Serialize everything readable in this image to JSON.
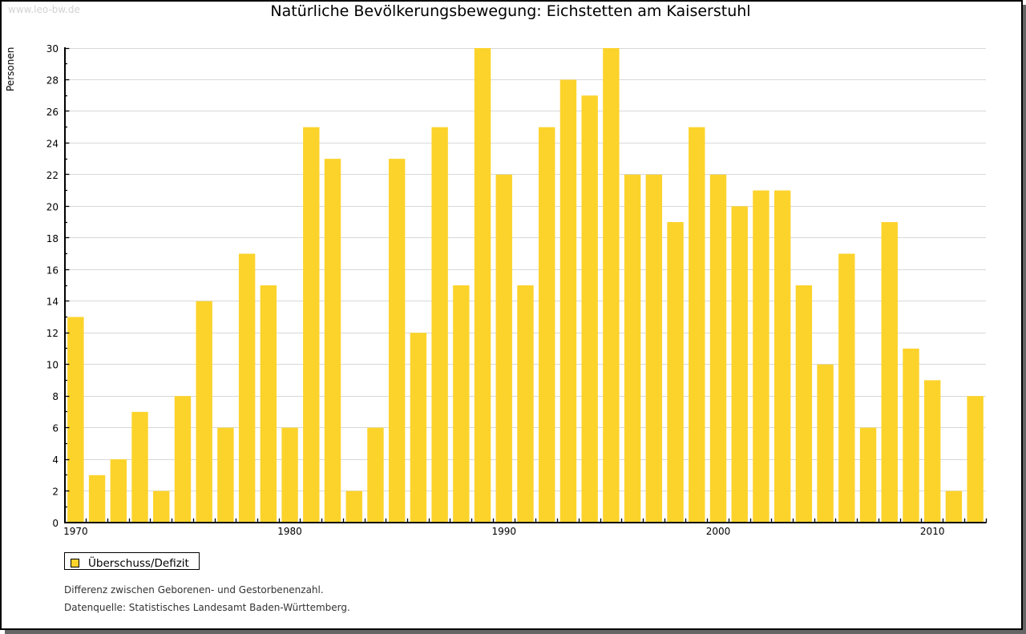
{
  "watermark": "www.leo-bw.de",
  "chart_data": {
    "type": "bar",
    "title": "Natürliche Bevölkerungsbewegung: Eichstetten am Kaiserstuhl",
    "ylabel": "Personen",
    "xlabel": "",
    "years": [
      1970,
      1971,
      1972,
      1973,
      1974,
      1975,
      1976,
      1977,
      1978,
      1979,
      1980,
      1981,
      1982,
      1983,
      1984,
      1985,
      1986,
      1987,
      1988,
      1989,
      1990,
      1991,
      1992,
      1993,
      1994,
      1995,
      1996,
      1997,
      1998,
      1999,
      2000,
      2001,
      2002,
      2003,
      2004,
      2005,
      2006,
      2007,
      2008,
      2009,
      2010,
      2011,
      2012
    ],
    "values": [
      13,
      3,
      4,
      7,
      2,
      8,
      14,
      6,
      17,
      15,
      6,
      25,
      23,
      2,
      6,
      23,
      12,
      25,
      15,
      30,
      22,
      15,
      25,
      28,
      27,
      30,
      22,
      22,
      19,
      25,
      22,
      20,
      21,
      21,
      15,
      10,
      17,
      6,
      19,
      11,
      9,
      2,
      8
    ],
    "x_tick_labels": [
      "1970",
      "1980",
      "1990",
      "2000",
      "2010"
    ],
    "ylim": [
      0,
      30
    ],
    "y_tick_step": 2,
    "y_minor_tick_step": 1,
    "grid": "horizontal-major",
    "legend_position": "bottom-left",
    "series_name": "Überschuss/Defizit",
    "bar_color": "#fcd32b",
    "grid_color": "#d8d8d8",
    "axis_color": "#000000"
  },
  "legend": {
    "label": "Überschuss/Defizit"
  },
  "footnotes": {
    "line1": "Differenz zwischen Geborenen- und Gestorbenenzahl.",
    "line2": "Datenquelle: Statistisches Landesamt Baden-Württemberg."
  },
  "colors": {
    "bar": "#fcd32b",
    "frame_border": "#000000",
    "frame_shadow": "#666666",
    "grid": "#d8d8d8",
    "watermark": "#d2d2d2",
    "footnote": "#333333"
  }
}
